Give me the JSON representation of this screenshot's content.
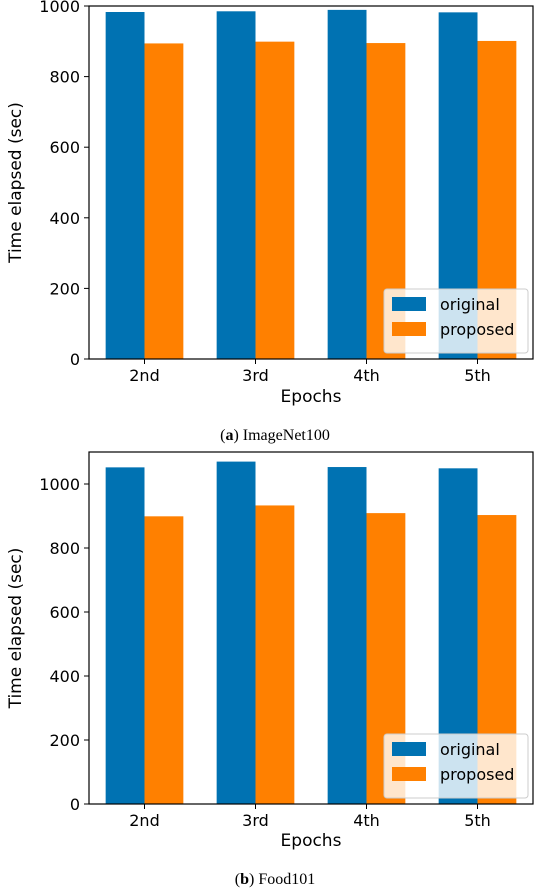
{
  "chart_data": [
    {
      "type": "bar",
      "caption_letter": "a",
      "caption_text": "ImageNet100",
      "categories": [
        "2nd",
        "3rd",
        "4th",
        "5th"
      ],
      "series": [
        {
          "name": "original",
          "color": "#0072B2",
          "values": [
            983,
            985,
            989,
            982
          ]
        },
        {
          "name": "proposed",
          "color": "#FF8000",
          "values": [
            894,
            899,
            895,
            901
          ]
        }
      ],
      "xlabel": "Epochs",
      "ylabel": "Time elapsed (sec)",
      "ylim": [
        0,
        1000
      ],
      "yticks": [
        0,
        200,
        400,
        600,
        800,
        1000
      ],
      "legend": "lower-right",
      "grid": false
    },
    {
      "type": "bar",
      "caption_letter": "b",
      "caption_text": "Food101",
      "categories": [
        "2nd",
        "3rd",
        "4th",
        "5th"
      ],
      "series": [
        {
          "name": "original",
          "color": "#0072B2",
          "values": [
            1052,
            1070,
            1053,
            1049
          ]
        },
        {
          "name": "proposed",
          "color": "#FF8000",
          "values": [
            899,
            933,
            909,
            903
          ]
        }
      ],
      "xlabel": "Epochs",
      "ylabel": "Time elapsed (sec)",
      "ylim": [
        0,
        1100
      ],
      "yticks": [
        0,
        200,
        400,
        600,
        800,
        1000
      ],
      "legend": "lower-right",
      "grid": false
    }
  ]
}
